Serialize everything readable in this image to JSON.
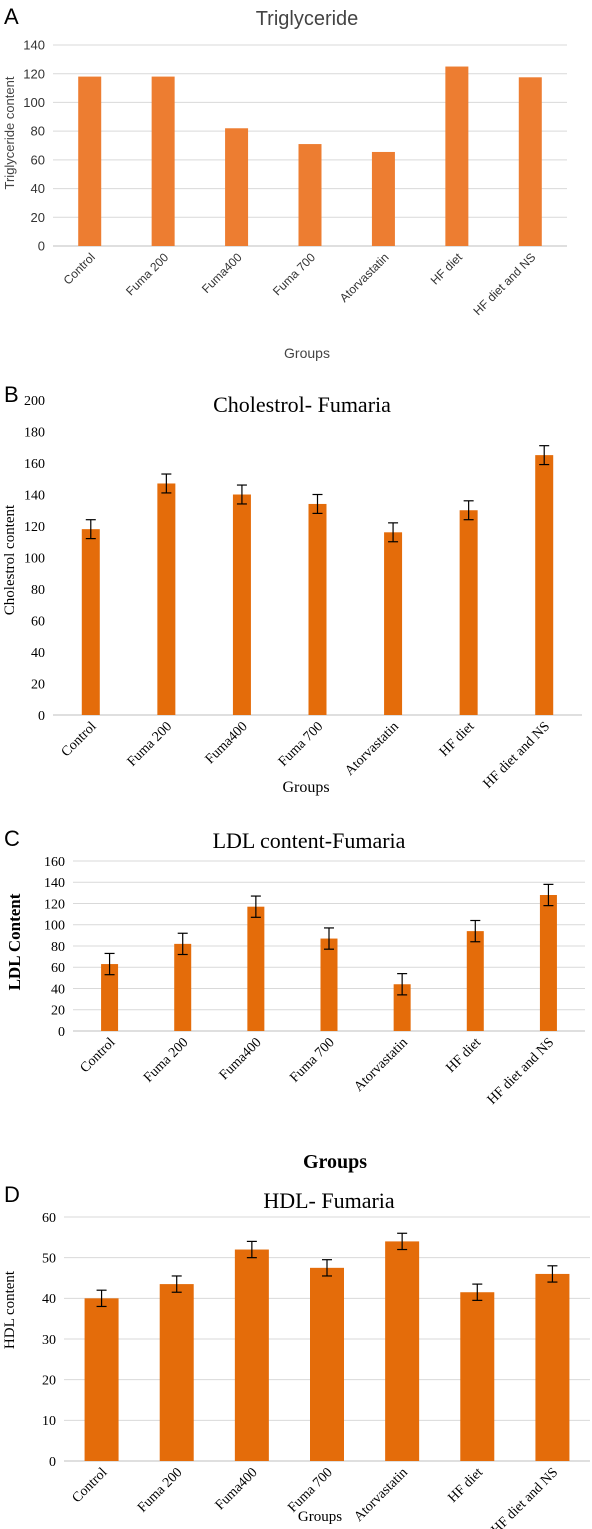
{
  "chart_data": [
    {
      "panel": "A",
      "type": "bar",
      "title": "Triglyceride",
      "xlabel": "Groups",
      "ylabel": "Triglyceride content",
      "categories": [
        "Control",
        "Fuma 200",
        "Fuma400",
        "Fuma 700",
        "Atorvastatin",
        "HF diet",
        "HF diet and NS"
      ],
      "values": [
        118,
        118,
        82,
        71,
        65.5,
        125,
        117.5
      ],
      "ylim": [
        0,
        140
      ],
      "yticks": [
        0,
        20,
        40,
        60,
        80,
        100,
        120,
        140
      ],
      "error_bars": false,
      "grid": true,
      "color": "#ED7D31"
    },
    {
      "panel": "B",
      "type": "bar",
      "title": "Cholestrol- Fumaria",
      "xlabel": "Groups",
      "ylabel": "Cholestrol content",
      "categories": [
        "Control",
        "Fuma 200",
        "Fuma400",
        "Fuma 700",
        "Atorvastatin",
        "HF diet",
        "HF diet and NS"
      ],
      "values": [
        118,
        147,
        140,
        134,
        116,
        130,
        165
      ],
      "errors": [
        6,
        6,
        6,
        6,
        6,
        6,
        6
      ],
      "ylim": [
        0,
        200
      ],
      "yticks": [
        0,
        20,
        40,
        60,
        80,
        100,
        120,
        140,
        160,
        180,
        200
      ],
      "error_bars": true,
      "grid": false,
      "color": "#E46C0A"
    },
    {
      "panel": "C",
      "type": "bar",
      "title": "LDL content-Fumaria",
      "xlabel": "Groups",
      "ylabel": "LDL Content",
      "categories": [
        "Control",
        "Fuma 200",
        "Fuma400",
        "Fuma 700",
        "Atorvastatin",
        "HF diet",
        "HF diet and NS"
      ],
      "values": [
        63,
        82,
        117,
        87,
        44,
        94,
        128
      ],
      "errors": [
        10,
        10,
        10,
        10,
        10,
        10,
        10
      ],
      "ylim": [
        0,
        160
      ],
      "yticks": [
        0,
        20,
        40,
        60,
        80,
        100,
        120,
        140,
        160
      ],
      "error_bars": true,
      "grid": true,
      "color": "#E46C0A"
    },
    {
      "panel": "D",
      "type": "bar",
      "title": "HDL- Fumaria",
      "xlabel": "Groups",
      "ylabel": "HDL content",
      "categories": [
        "Control",
        "Fuma 200",
        "Fuma400",
        "Fuma 700",
        "Atorvastatin",
        "HF diet",
        "HF diet and NS"
      ],
      "values": [
        40,
        43.5,
        52,
        47.5,
        54,
        41.5,
        46
      ],
      "errors": [
        2,
        2,
        2,
        2,
        2,
        2,
        2
      ],
      "ylim": [
        0,
        60
      ],
      "yticks": [
        0,
        10,
        20,
        30,
        40,
        50,
        60
      ],
      "error_bars": true,
      "grid": true,
      "color": "#E46C0A"
    }
  ]
}
